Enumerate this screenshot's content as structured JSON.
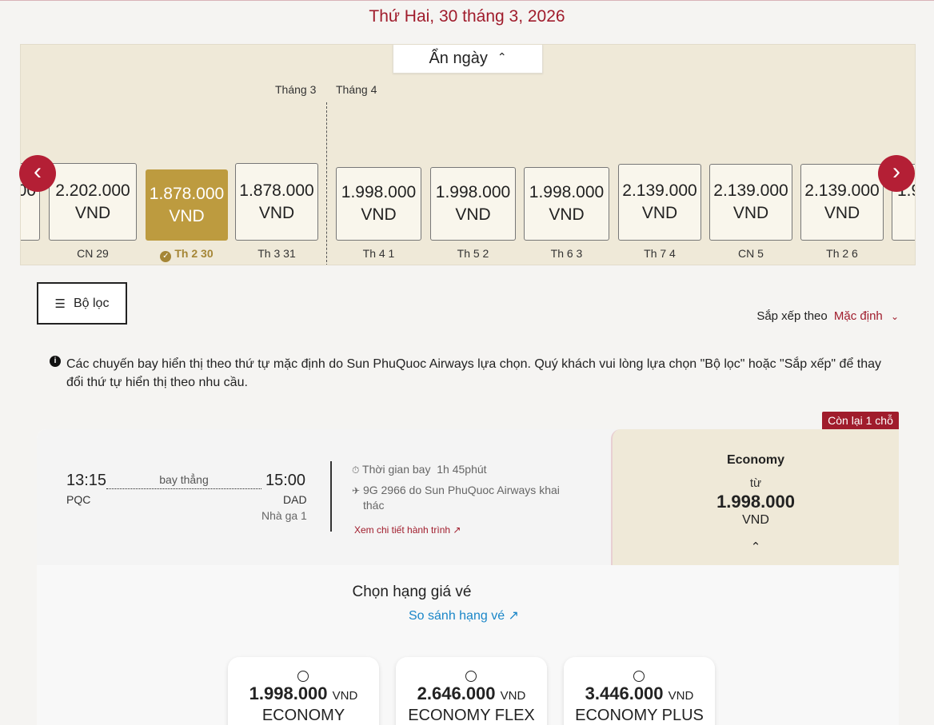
{
  "header": {
    "date_title": "Thứ Hai, 30 tháng 3, 2026"
  },
  "calendar": {
    "hide_label": "Ẩn ngày",
    "months": [
      "Tháng 3",
      "Tháng 4"
    ],
    "currency": "VND",
    "days": [
      {
        "price": "2.202.000",
        "label": "CN 29",
        "selected": false
      },
      {
        "price": "1.878.000",
        "label": "Th 2 30",
        "selected": true
      },
      {
        "price": "1.878.000",
        "label": "Th 3 31",
        "selected": false
      },
      {
        "price": "1.998.000",
        "label": "Th 4 1",
        "selected": false
      },
      {
        "price": "1.998.000",
        "label": "Th 5 2",
        "selected": false
      },
      {
        "price": "1.998.000",
        "label": "Th 6 3",
        "selected": false
      },
      {
        "price": "2.139.000",
        "label": "Th 7 4",
        "selected": false
      },
      {
        "price": "2.139.000",
        "label": "CN 5",
        "selected": false
      },
      {
        "price": "2.139.000",
        "label": "Th 2 6",
        "selected": false
      }
    ],
    "partial_left": "00",
    "partial_right": "1.9"
  },
  "filter": {
    "label": "Bộ lọc"
  },
  "sort": {
    "label": "Sắp xếp theo",
    "value": "Mặc định"
  },
  "notice": {
    "text": "Các chuyến bay hiển thị theo thứ tự mặc định do Sun PhuQuoc Airways lựa chọn. Quý khách vui lòng lựa chọn \"Bộ lọc\" hoặc \"Sắp xếp\" để thay đổi thứ tự hiển thị theo nhu cầu."
  },
  "flight": {
    "seats_left": "Còn lại 1 chỗ",
    "dep_time": "13:15",
    "dep_code": "PQC",
    "arr_time": "15:00",
    "arr_code": "DAD",
    "terminal": "Nhà ga 1",
    "direct_label": "bay thẳng",
    "duration_label": "Thời gian bay",
    "duration": "1h 45phút",
    "operator_line1": "9G 2966 do Sun PhuQuoc Airways khai",
    "operator_line2": "thác",
    "details_link": "Xem chi tiết hành trình",
    "economy": {
      "title": "Economy",
      "from": "từ",
      "price": "1.998.000",
      "currency": "VND"
    }
  },
  "fares": {
    "title": "Chọn hạng giá vé",
    "compare_link": "So sánh hạng vé",
    "currency": "VND",
    "options": [
      {
        "price": "1.998.000",
        "name": "ECONOMY"
      },
      {
        "price": "2.646.000",
        "name": "ECONOMY FLEX"
      },
      {
        "price": "3.446.000",
        "name": "ECONOMY PLUS"
      }
    ]
  },
  "icons": {
    "prev": "chevron-left-icon",
    "next": "chevron-right-icon",
    "filter": "sliders-icon",
    "info": "info-icon",
    "clock": "stopwatch-icon",
    "plane": "plane-icon",
    "external": "external-link-icon"
  },
  "colors": {
    "brand_red": "#a01c2c",
    "gold": "#bd9b3f",
    "beige": "#efe9d8",
    "link_blue": "#1a86c8"
  }
}
